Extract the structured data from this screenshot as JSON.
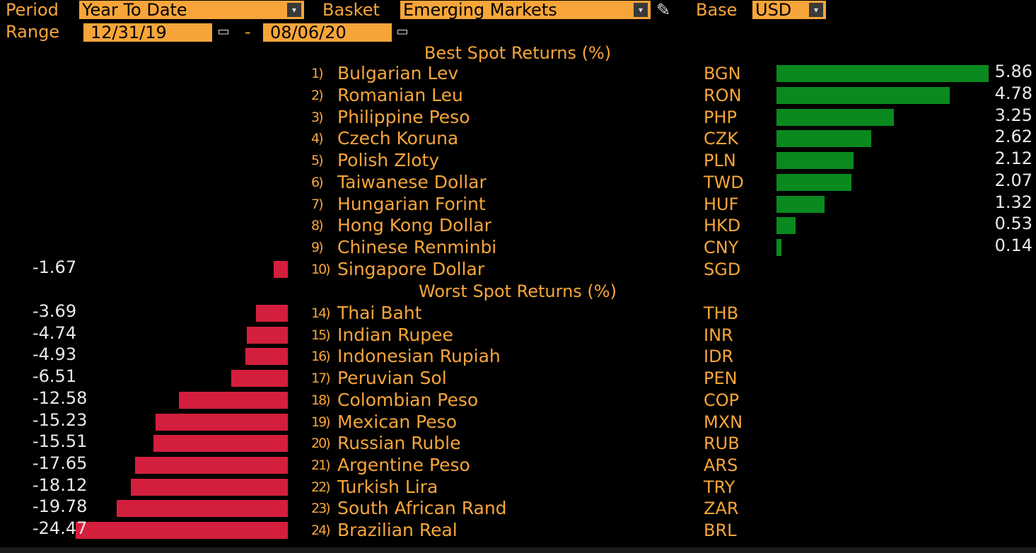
{
  "toolbar": {
    "period_label": "Period",
    "period_value": "Year To Date",
    "basket_label": "Basket",
    "basket_value": "Emerging Markets",
    "base_label": "Base",
    "base_value": "USD",
    "range_label": "Range",
    "range_start": "12/31/19",
    "range_sep": "-",
    "range_end": "08/06/20",
    "dropdown_glyph": "▾",
    "calendar_glyph": "▭",
    "edit_glyph": "✎"
  },
  "best": {
    "title": "Best Spot Returns (%)",
    "rows": [
      {
        "rank": "1)",
        "name": "Bulgarian Lev",
        "code": "BGN",
        "value": "5.86",
        "v": 5.86
      },
      {
        "rank": "2)",
        "name": "Romanian Leu",
        "code": "RON",
        "value": "4.78",
        "v": 4.78
      },
      {
        "rank": "3)",
        "name": "Philippine Peso",
        "code": "PHP",
        "value": "3.25",
        "v": 3.25
      },
      {
        "rank": "4)",
        "name": "Czech Koruna",
        "code": "CZK",
        "value": "2.62",
        "v": 2.62
      },
      {
        "rank": "5)",
        "name": "Polish Zloty",
        "code": "PLN",
        "value": "2.12",
        "v": 2.12
      },
      {
        "rank": "6)",
        "name": "Taiwanese Dollar",
        "code": "TWD",
        "value": "2.07",
        "v": 2.07
      },
      {
        "rank": "7)",
        "name": "Hungarian Forint",
        "code": "HUF",
        "value": "1.32",
        "v": 1.32
      },
      {
        "rank": "8)",
        "name": "Hong Kong Dollar",
        "code": "HKD",
        "value": "0.53",
        "v": 0.53
      },
      {
        "rank": "9)",
        "name": "Chinese Renminbi",
        "code": "CNY",
        "value": "0.14",
        "v": 0.14
      },
      {
        "rank": "10)",
        "name": "Singapore Dollar",
        "code": "SGD",
        "value": "-1.67",
        "v": -1.67
      }
    ]
  },
  "worst": {
    "title": "Worst Spot Returns (%)",
    "rows": [
      {
        "rank": "14)",
        "name": "Thai Baht",
        "code": "THB",
        "value": "-3.69",
        "v": -3.69
      },
      {
        "rank": "15)",
        "name": "Indian Rupee",
        "code": "INR",
        "value": "-4.74",
        "v": -4.74
      },
      {
        "rank": "16)",
        "name": "Indonesian Rupiah",
        "code": "IDR",
        "value": "-4.93",
        "v": -4.93
      },
      {
        "rank": "17)",
        "name": "Peruvian Sol",
        "code": "PEN",
        "value": "-6.51",
        "v": -6.51
      },
      {
        "rank": "18)",
        "name": "Colombian Peso",
        "code": "COP",
        "value": "-12.58",
        "v": -12.58
      },
      {
        "rank": "19)",
        "name": "Mexican Peso",
        "code": "MXN",
        "value": "-15.23",
        "v": -15.23
      },
      {
        "rank": "20)",
        "name": "Russian Ruble",
        "code": "RUB",
        "value": "-15.51",
        "v": -15.51
      },
      {
        "rank": "21)",
        "name": "Argentine Peso",
        "code": "ARS",
        "value": "-17.65",
        "v": -17.65
      },
      {
        "rank": "22)",
        "name": "Turkish Lira",
        "code": "TRY",
        "value": "-18.12",
        "v": -18.12
      },
      {
        "rank": "23)",
        "name": "South African Rand",
        "code": "ZAR",
        "value": "-19.78",
        "v": -19.78
      },
      {
        "rank": "24)",
        "name": "Brazilian Real",
        "code": "BRL",
        "value": "-24.47",
        "v": -24.47
      }
    ]
  },
  "colors": {
    "accent": "#f7a53a",
    "positive": "#0a8a1e",
    "negative": "#d31f3d",
    "background": "#000000"
  }
}
